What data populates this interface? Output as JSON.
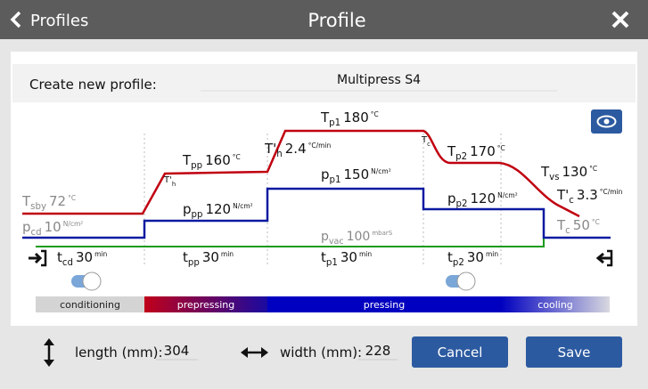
{
  "header": {
    "back": "Profiles",
    "title": "Profile"
  },
  "profile": {
    "label": "Create new profile:",
    "name": "Multipress S4"
  },
  "diagram": {
    "labels": [
      {
        "symbol": "T",
        "sub": "sby",
        "value": "72",
        "unit": "°C"
      },
      {
        "symbol": "p",
        "sub": "cd",
        "value": "10",
        "unit": "N/cm²"
      },
      {
        "symbol": "T'",
        "sub": "h"
      },
      {
        "symbol": "T",
        "sub": "pp",
        "value": "160",
        "unit": "°C"
      },
      {
        "symbol": "p",
        "sub": "pp",
        "value": "120",
        "unit": "N/cm²"
      },
      {
        "symbol": "T'",
        "sub": "h",
        "value": "2.4",
        "unit": "°C/min"
      },
      {
        "symbol": "T",
        "sub": "p1",
        "value": "180",
        "unit": "°C"
      },
      {
        "symbol": "p",
        "sub": "p1",
        "value": "150",
        "unit": "N/cm²"
      },
      {
        "symbol": "p",
        "sub": "vac",
        "value": "100",
        "unit": "mbarS"
      },
      {
        "symbol": "T",
        "sub": "c"
      },
      {
        "symbol": "T",
        "sub": "p2",
        "value": "170",
        "unit": "°C"
      },
      {
        "symbol": "p",
        "sub": "p2",
        "value": "120",
        "unit": "N/cm²"
      },
      {
        "symbol": "T",
        "sub": "vs",
        "value": "130",
        "unit": "°C"
      },
      {
        "symbol": "T'",
        "sub": "c",
        "value": "3.3",
        "unit": "°C/min"
      },
      {
        "symbol": "T",
        "sub": "c",
        "value": "50",
        "unit": "°C"
      }
    ],
    "durations": [
      {
        "symbol": "t",
        "sub": "cd",
        "value": "30",
        "unit": "min"
      },
      {
        "symbol": "t",
        "sub": "pp",
        "value": "30",
        "unit": "min"
      },
      {
        "symbol": "t",
        "sub": "p1",
        "value": "30",
        "unit": "min"
      },
      {
        "symbol": "t",
        "sub": "p2",
        "value": "30",
        "unit": "min"
      }
    ],
    "phases": [
      "conditioning",
      "prepressing",
      "pressing",
      "cooling"
    ]
  },
  "footer": {
    "length_label": "length (mm):",
    "length": "304",
    "width_label": "width (mm):",
    "width": "228",
    "cancel": "Cancel",
    "save": "Save"
  }
}
